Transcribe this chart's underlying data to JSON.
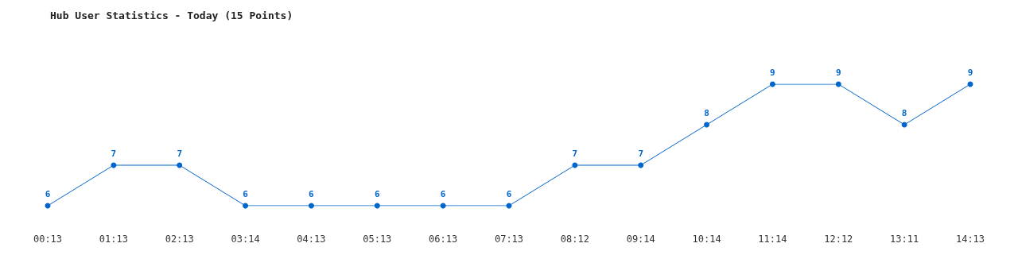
{
  "chart_data": {
    "type": "line",
    "title": "Hub User Statistics - Today (15 Points)",
    "categories": [
      "00:13",
      "01:13",
      "02:13",
      "03:14",
      "04:13",
      "05:13",
      "06:13",
      "07:13",
      "08:12",
      "09:14",
      "10:14",
      "11:14",
      "12:12",
      "13:11",
      "14:13"
    ],
    "series": [
      {
        "color": "#0066cc",
        "values": [
          6,
          7,
          7,
          6,
          6,
          6,
          6,
          6,
          7,
          7,
          8,
          9,
          9,
          8,
          9
        ]
      }
    ],
    "data_labels": true,
    "marker": "circle",
    "line_style": "solid"
  }
}
